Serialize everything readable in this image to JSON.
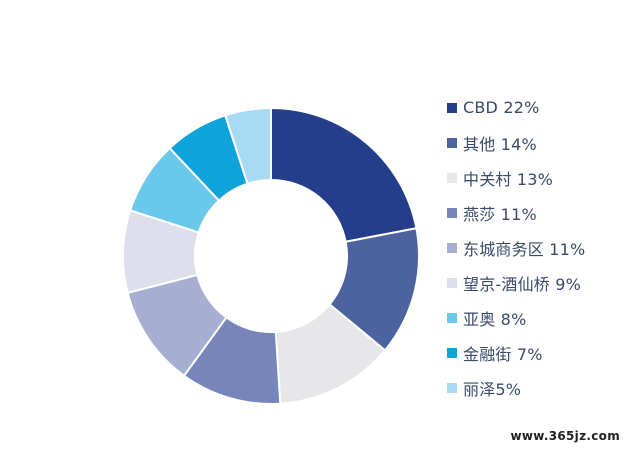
{
  "chart_data": {
    "type": "pie",
    "donut": true,
    "title": "",
    "legend_position": "right",
    "slices": [
      {
        "label": "CBD",
        "value": 22,
        "legend_text": "CBD 22%",
        "color": "#253e8b"
      },
      {
        "label": "其他",
        "value": 14,
        "legend_text": "其他 14%",
        "color": "#4d63a0"
      },
      {
        "label": "中关村",
        "value": 13,
        "legend_text": "中关村 13%",
        "color": "#e7e7ea"
      },
      {
        "label": "燕莎",
        "value": 11,
        "legend_text": "燕莎 11%",
        "color": "#7686ba"
      },
      {
        "label": "东城商务区",
        "value": 11,
        "legend_text": "东城商务区 11%",
        "color": "#a6aed2"
      },
      {
        "label": "望京-酒仙桥",
        "value": 9,
        "legend_text": "望京-酒仙桥 9%",
        "color": "#dde0ec"
      },
      {
        "label": "亚奥",
        "value": 8,
        "legend_text": "亚奥 8%",
        "color": "#6ac9ea"
      },
      {
        "label": "金融街",
        "value": 7,
        "legend_text": "金融街 7%",
        "color": "#10a2da"
      },
      {
        "label": "丽泽",
        "value": 5,
        "legend_text": "丽泽5%",
        "color": "#a7dbf3"
      }
    ]
  },
  "watermark": "www.365jz.com"
}
